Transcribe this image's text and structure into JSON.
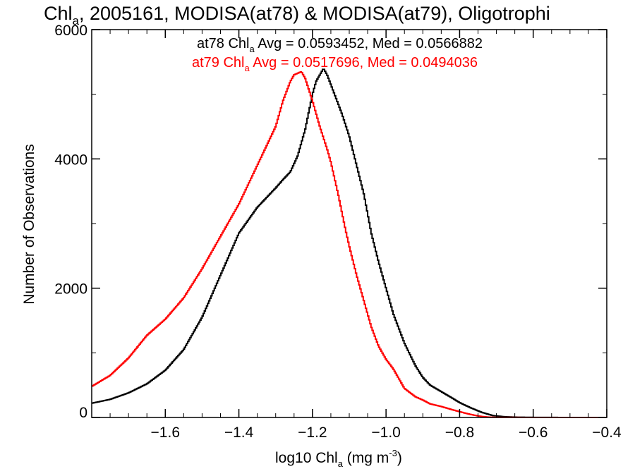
{
  "chart_data": {
    "type": "line",
    "title": {
      "main": "Chl",
      "sub": "a",
      "rest": ", 2005161, MODISA(at78) & MODISA(at79), Oligotrophi"
    },
    "xlabel": {
      "main": "log10 Chl",
      "sub": "a",
      "units": " (mg m",
      "sup": "-3",
      "close": ")"
    },
    "ylabel": "Number of Observations",
    "xlim": [
      -1.8,
      -0.4
    ],
    "ylim": [
      0,
      6000
    ],
    "x_ticks": [
      "-1.6",
      "-1.4",
      "-1.2",
      "-1.0",
      "-0.8",
      "-0.6",
      "-0.4"
    ],
    "y_ticks": [
      "0",
      "2000",
      "4000",
      "6000"
    ],
    "grid": false,
    "series": [
      {
        "name": "at78",
        "color": "#000000",
        "stats": {
          "prefix": "at78 Chl",
          "sub": "a",
          "text": " Avg = 0.0593452, Med = 0.0566882"
        },
        "points": [
          [
            -1.8,
            220
          ],
          [
            -1.75,
            280
          ],
          [
            -1.7,
            380
          ],
          [
            -1.65,
            520
          ],
          [
            -1.6,
            730
          ],
          [
            -1.55,
            1050
          ],
          [
            -1.5,
            1550
          ],
          [
            -1.45,
            2200
          ],
          [
            -1.4,
            2850
          ],
          [
            -1.35,
            3250
          ],
          [
            -1.3,
            3550
          ],
          [
            -1.28,
            3680
          ],
          [
            -1.26,
            3800
          ],
          [
            -1.24,
            4050
          ],
          [
            -1.22,
            4450
          ],
          [
            -1.2,
            5000
          ],
          [
            -1.19,
            5200
          ],
          [
            -1.17,
            5400
          ],
          [
            -1.16,
            5300
          ],
          [
            -1.14,
            5000
          ],
          [
            -1.12,
            4700
          ],
          [
            -1.1,
            4350
          ],
          [
            -1.08,
            3900
          ],
          [
            -1.06,
            3450
          ],
          [
            -1.04,
            2850
          ],
          [
            -1.02,
            2400
          ],
          [
            -1.0,
            2000
          ],
          [
            -0.98,
            1600
          ],
          [
            -0.95,
            1150
          ],
          [
            -0.92,
            800
          ],
          [
            -0.9,
            620
          ],
          [
            -0.88,
            500
          ],
          [
            -0.85,
            400
          ],
          [
            -0.82,
            300
          ],
          [
            -0.8,
            230
          ],
          [
            -0.77,
            150
          ],
          [
            -0.74,
            80
          ],
          [
            -0.71,
            30
          ],
          [
            -0.68,
            12
          ],
          [
            -0.65,
            5
          ],
          [
            -0.6,
            2
          ],
          [
            -0.5,
            0
          ],
          [
            -0.4,
            0
          ]
        ]
      },
      {
        "name": "at79",
        "color": "#ff0000",
        "stats": {
          "prefix": "at79 Chl",
          "sub": "a",
          "text": " Avg = 0.0517696, Med = 0.0494036"
        },
        "points": [
          [
            -1.8,
            480
          ],
          [
            -1.75,
            650
          ],
          [
            -1.7,
            920
          ],
          [
            -1.65,
            1270
          ],
          [
            -1.6,
            1520
          ],
          [
            -1.55,
            1850
          ],
          [
            -1.5,
            2300
          ],
          [
            -1.45,
            2800
          ],
          [
            -1.4,
            3300
          ],
          [
            -1.35,
            3900
          ],
          [
            -1.3,
            4500
          ],
          [
            -1.28,
            4900
          ],
          [
            -1.26,
            5200
          ],
          [
            -1.25,
            5300
          ],
          [
            -1.23,
            5350
          ],
          [
            -1.22,
            5250
          ],
          [
            -1.2,
            4900
          ],
          [
            -1.18,
            4500
          ],
          [
            -1.16,
            4150
          ],
          [
            -1.15,
            3950
          ],
          [
            -1.13,
            3450
          ],
          [
            -1.11,
            2900
          ],
          [
            -1.1,
            2650
          ],
          [
            -1.08,
            2200
          ],
          [
            -1.06,
            1800
          ],
          [
            -1.04,
            1400
          ],
          [
            -1.02,
            1100
          ],
          [
            -1.0,
            900
          ],
          [
            -0.98,
            750
          ],
          [
            -0.95,
            450
          ],
          [
            -0.92,
            320
          ],
          [
            -0.9,
            270
          ],
          [
            -0.88,
            210
          ],
          [
            -0.85,
            170
          ],
          [
            -0.82,
            120
          ],
          [
            -0.8,
            90
          ],
          [
            -0.78,
            60
          ],
          [
            -0.76,
            35
          ],
          [
            -0.74,
            15
          ],
          [
            -0.72,
            5
          ],
          [
            -0.7,
            2
          ],
          [
            -0.6,
            0
          ],
          [
            -0.4,
            0
          ]
        ]
      }
    ]
  }
}
